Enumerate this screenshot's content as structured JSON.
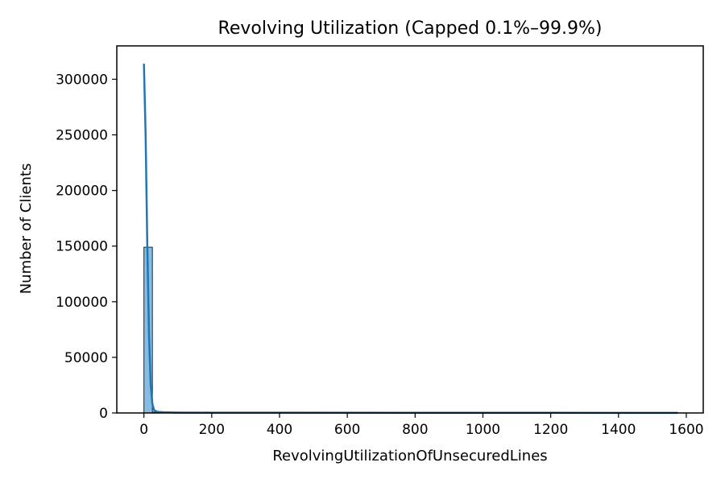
{
  "chart_data": {
    "type": "bar",
    "title": "Revolving Utilization (Capped 0.1%–99.9%)",
    "xlabel": "RevolvingUtilizationOfUnsecuredLines",
    "ylabel": "Number of Clients",
    "xlim": [
      -80,
      1650
    ],
    "ylim": [
      0,
      330000
    ],
    "xticks": [
      0,
      200,
      400,
      600,
      800,
      1000,
      1200,
      1400,
      1600
    ],
    "yticks": [
      0,
      50000,
      100000,
      150000,
      200000,
      250000,
      300000
    ],
    "grid": false,
    "bins": [
      {
        "x0": 0,
        "x1": 25,
        "count": 149000
      },
      {
        "x0": 25,
        "x1": 50,
        "count": 800
      }
    ],
    "kde": {
      "x": [
        0,
        5,
        10,
        15,
        20,
        25,
        30,
        40,
        60,
        100,
        200,
        400,
        800,
        1200,
        1575
      ],
      "y": [
        314000,
        250000,
        150000,
        70000,
        25000,
        8000,
        2500,
        1000,
        600,
        400,
        300,
        250,
        200,
        150,
        100
      ]
    },
    "colors": {
      "bar_fill": "#89bce3",
      "bar_edge": "#1a2a3a",
      "kde_line": "#1f77b4"
    }
  }
}
